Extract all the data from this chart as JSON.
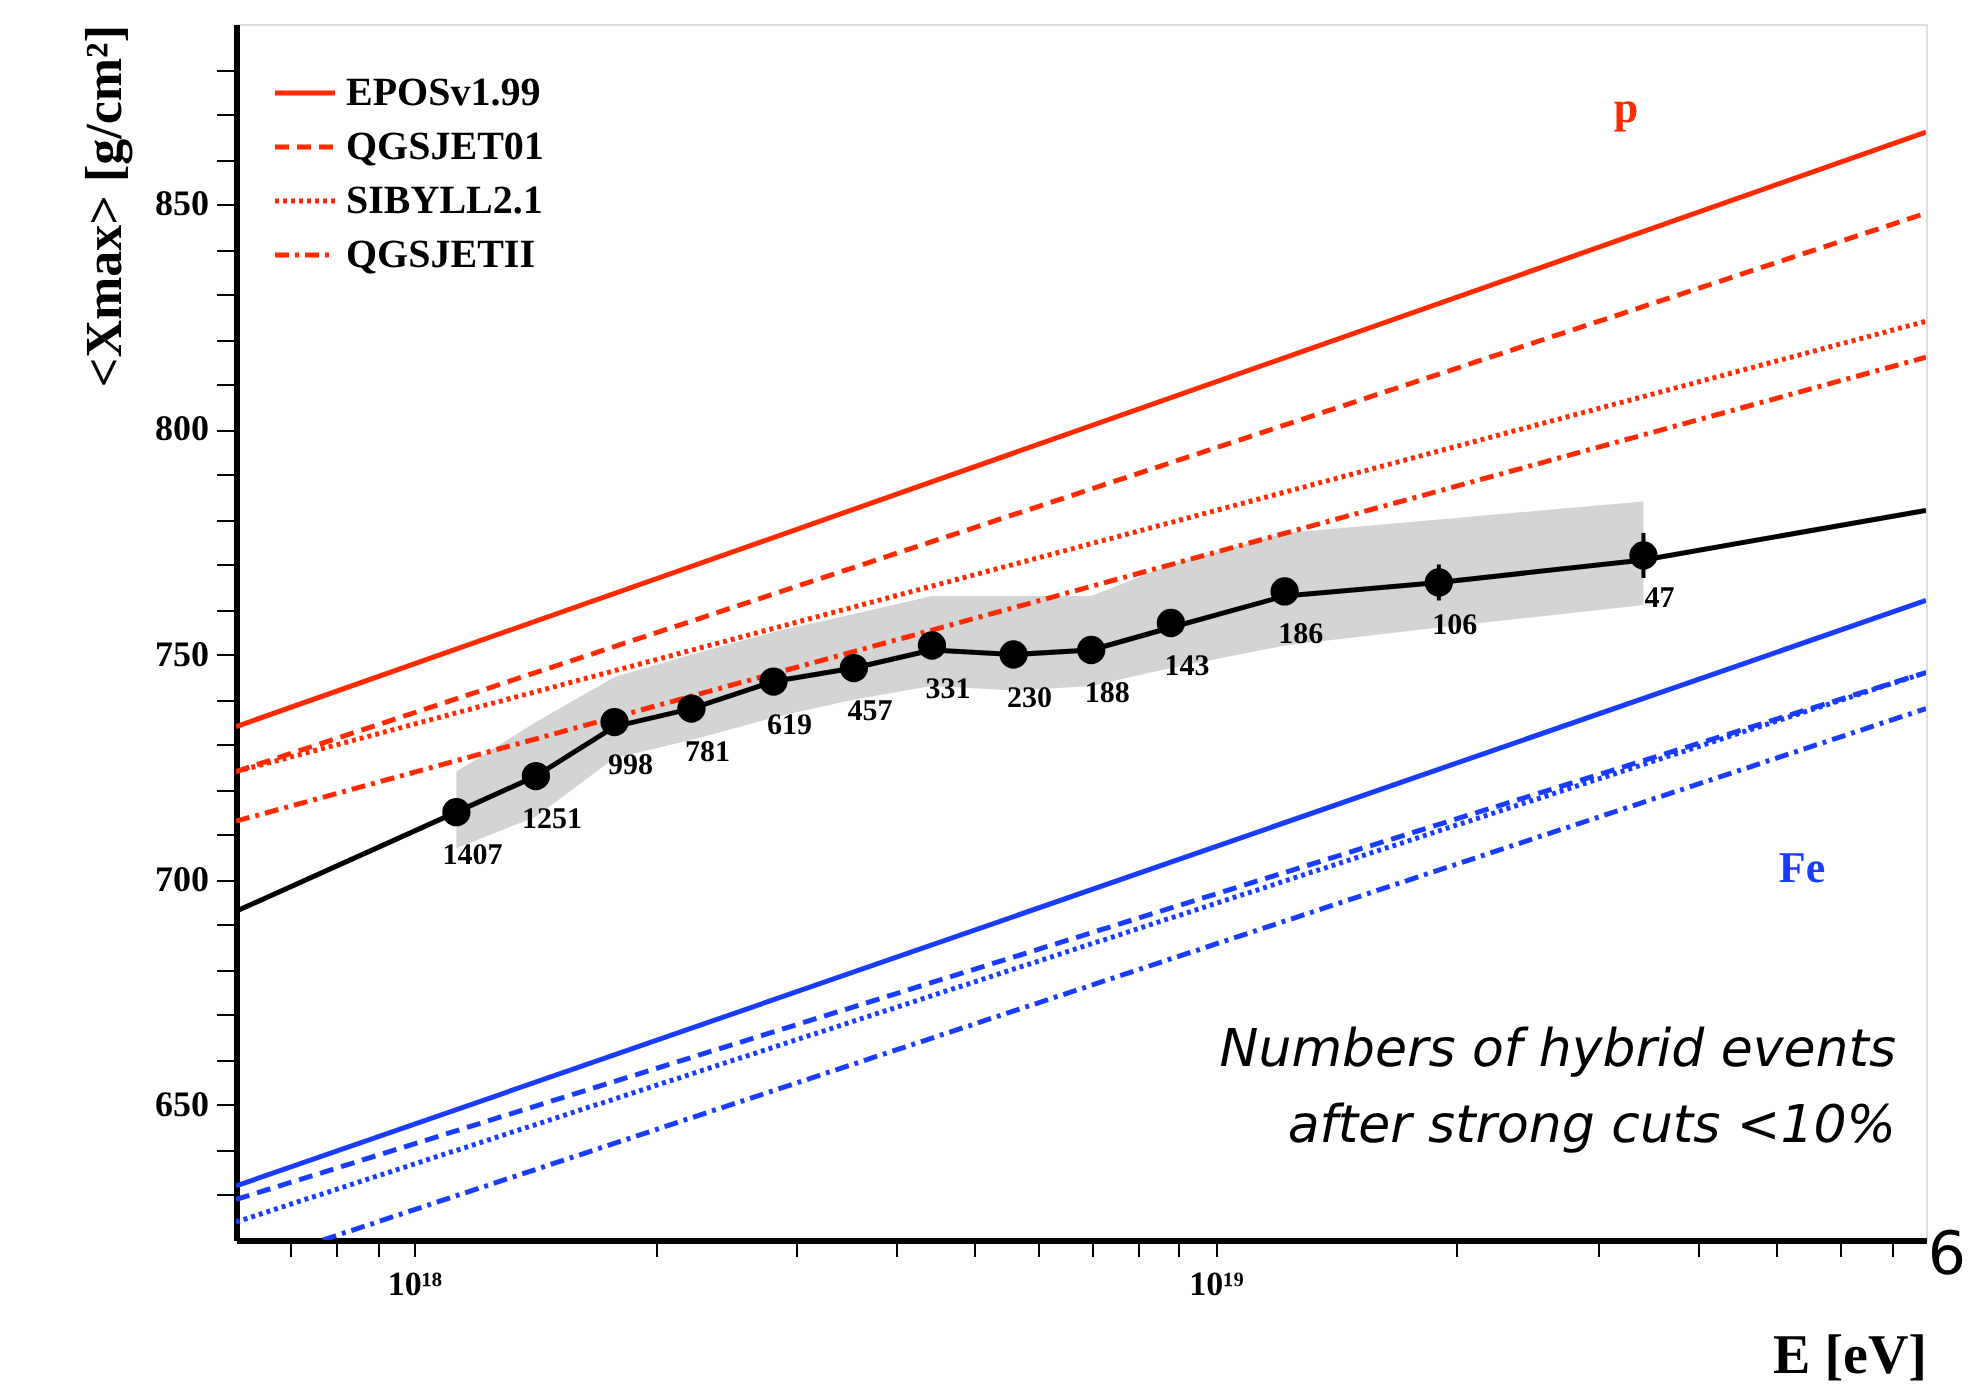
{
  "chart_data": {
    "type": "line",
    "xlabel": "E [eV]",
    "ylabel": "<Xmax> [g/cm²]",
    "log": "x",
    "xlim": [
      6e+17,
      7.7e+19
    ],
    "xticks": [
      {
        "value": 7e+17,
        "label": null
      },
      {
        "value": 8e+17,
        "label": null
      },
      {
        "value": 9e+17,
        "label": null
      },
      {
        "value": 1e+18,
        "label": "10¹⁸"
      },
      {
        "value": 2e+18,
        "label": null
      },
      {
        "value": 3e+18,
        "label": null
      },
      {
        "value": 4e+18,
        "label": null
      },
      {
        "value": 5e+18,
        "label": null
      },
      {
        "value": 6e+18,
        "label": null
      },
      {
        "value": 7e+18,
        "label": null
      },
      {
        "value": 8e+18,
        "label": null
      },
      {
        "value": 9e+18,
        "label": null
      },
      {
        "value": 1e+19,
        "label": "10¹⁹"
      },
      {
        "value": 2e+19,
        "label": null
      },
      {
        "value": 3e+19,
        "label": null
      },
      {
        "value": 4e+19,
        "label": null
      },
      {
        "value": 5e+19,
        "label": null
      },
      {
        "value": 6e+19,
        "label": null
      },
      {
        "value": 7e+19,
        "label": null
      }
    ],
    "ylim": [
      620,
      890
    ],
    "yticks": [
      {
        "value": 630,
        "label": null
      },
      {
        "value": 640,
        "label": null
      },
      650,
      {
        "value": 660,
        "label": null
      },
      {
        "value": 670,
        "label": null
      },
      {
        "value": 680,
        "label": null
      },
      {
        "value": 690,
        "label": null
      },
      700,
      {
        "value": 710,
        "label": null
      },
      {
        "value": 720,
        "label": null
      },
      {
        "value": 730,
        "label": null
      },
      {
        "value": 740,
        "label": null
      },
      750,
      {
        "value": 760,
        "label": null
      },
      {
        "value": 770,
        "label": null
      },
      {
        "value": 780,
        "label": null
      },
      {
        "value": 790,
        "label": null
      },
      800,
      {
        "value": 810,
        "label": null
      },
      {
        "value": 820,
        "label": null
      },
      {
        "value": 830,
        "label": null
      },
      {
        "value": 840,
        "label": null
      },
      850,
      {
        "value": 860,
        "label": null
      },
      {
        "value": 870,
        "label": null
      },
      {
        "value": 880,
        "label": null
      }
    ],
    "grid": false,
    "legend": "top left",
    "series": [
      {
        "name": "EPOSv1.99",
        "color": "#ff2a00",
        "line_style": "solid",
        "x": [
          6e+17,
          7.7e+19
        ],
        "values": [
          734,
          866
        ]
      },
      {
        "name": "QGSJET01",
        "color": "#ff2a00",
        "line_style": "dashed",
        "x": [
          6e+17,
          7.7e+19
        ],
        "values": [
          724,
          848
        ]
      },
      {
        "name": "SIBYLL2.1",
        "color": "#ff2a00",
        "line_style": "dotted",
        "x": [
          6e+17,
          7.7e+19
        ],
        "values": [
          724,
          824
        ]
      },
      {
        "name": "QGSJETII",
        "color": "#ff2a00",
        "line_style": "dashdot",
        "x": [
          6e+17,
          7.7e+19
        ],
        "values": [
          713,
          816
        ]
      },
      {
        "color": "#1a3cff",
        "line_style": "solid",
        "x": [
          6e+17,
          7.7e+19
        ],
        "values": [
          632,
          762
        ]
      },
      {
        "color": "#1a3cff",
        "line_style": "dashed",
        "x": [
          6e+17,
          7.7e+19
        ],
        "values": [
          629,
          746
        ]
      },
      {
        "color": "#1a3cff",
        "line_style": "dotted",
        "x": [
          6e+17,
          7.7e+19
        ],
        "values": [
          624,
          746
        ]
      },
      {
        "color": "#1a3cff",
        "line_style": "dashdot",
        "x": [
          7.7e+17,
          7.7e+19
        ],
        "values": [
          620,
          738
        ]
      },
      {
        "color": "#000000",
        "line_style": "solid",
        "x": [
          6e+17,
          1.13e+18,
          1.42e+18,
          1.78e+18,
          2.22e+18,
          2.81e+18,
          3.54e+18,
          4.43e+18,
          5.6e+18,
          7e+18,
          8.8e+18,
          1.22e+19,
          1.9e+19,
          3.42e+19,
          7.7e+19
        ],
        "values": [
          693,
          715,
          723,
          734,
          738,
          744,
          747,
          751,
          750,
          751,
          756,
          763,
          766,
          771,
          782
        ]
      },
      {
        "type": "scatter",
        "color": "#000000",
        "marker": "circle",
        "x": [
          1.13e+18,
          1.42e+18,
          1.78e+18,
          2.22e+18,
          2.81e+18,
          3.54e+18,
          4.43e+18,
          5.6e+18,
          7e+18,
          8.8e+18,
          1.22e+19,
          1.9e+19,
          3.42e+19
        ],
        "values": [
          715,
          723,
          735,
          738,
          744,
          747,
          752,
          750,
          751,
          757,
          764,
          766,
          772
        ],
        "errors": [
          null,
          null,
          null,
          null,
          null,
          null,
          null,
          null,
          3,
          3,
          3,
          4,
          5
        ],
        "lower": [
          707,
          714,
          727,
          731,
          736,
          740,
          743,
          742,
          743,
          747,
          752,
          756,
          761
        ],
        "upper": [
          724,
          735,
          745,
          750,
          755,
          759,
          763,
          763,
          763,
          770,
          777,
          780,
          784
        ]
      }
    ],
    "annotations": [
      {
        "text": "1407",
        "x": 1.13e+18,
        "y": 715
      },
      {
        "text": "1251",
        "x": 1.42e+18,
        "y": 723
      },
      {
        "text": "998",
        "x": 1.78e+18,
        "y": 735
      },
      {
        "text": "781",
        "x": 2.22e+18,
        "y": 738
      },
      {
        "text": "619",
        "x": 2.81e+18,
        "y": 744
      },
      {
        "text": "457",
        "x": 3.54e+18,
        "y": 747
      },
      {
        "text": "331",
        "x": 4.43e+18,
        "y": 752
      },
      {
        "text": "230",
        "x": 5.6e+18,
        "y": 750
      },
      {
        "text": "188",
        "x": 7e+18,
        "y": 751
      },
      {
        "text": "143",
        "x": 8.8e+18,
        "y": 757
      },
      {
        "text": "186",
        "x": 1.22e+19,
        "y": 764
      },
      {
        "text": "106",
        "x": 1.9e+19,
        "y": 766
      },
      {
        "text": "47",
        "x": 3.42e+19,
        "y": 772
      },
      "p",
      "Fe",
      "Numbers of hybrid events\nafter strong cuts <10%",
      "6"
    ]
  }
}
